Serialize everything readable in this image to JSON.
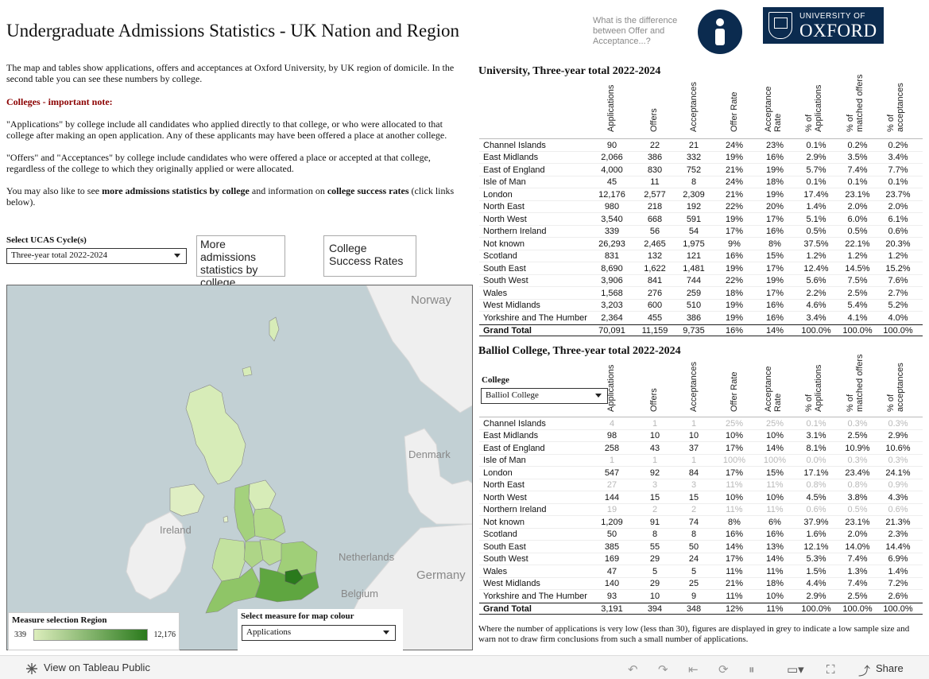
{
  "header": {
    "title": "Undergraduate Admissions Statistics - UK Nation and Region",
    "help_link": "What is the difference between Offer and Acceptance...?",
    "logo_line1": "UNIVERSITY OF",
    "logo_line2": "OXFORD"
  },
  "intro": {
    "p1": "The map and tables show applications, offers and acceptances at Oxford University, by UK region of domicile. In the second table you can see these numbers by college.",
    "note_title": "Colleges - important note:",
    "p2": "\"Applications\" by college include all candidates who applied directly to that college, or who were allocated to that college after making an open application. Any of these applicants may have been offered a place at another college.",
    "p3": "\"Offers\" and \"Acceptances\" by college include candidates who were offered a place or accepted at that college, regardless of the college to which they originally applied or were allocated.",
    "p4_pre": "You may also like to see ",
    "p4_bold1": "more admissions statistics by college",
    "p4_mid": " and information on ",
    "p4_bold2": "college success rates",
    "p4_post": " (click links below)."
  },
  "controls": {
    "cycle_label": "Select UCAS Cycle(s)",
    "cycle_value": "Three-year total 2022-2024",
    "more_button": "More admissions statistics by college",
    "rates_button": "College Success Rates"
  },
  "map": {
    "labels": {
      "norway": "Norway",
      "denmark": "Denmark",
      "ireland": "Ireland",
      "netherlands": "Netherlands",
      "germany": "Germany",
      "belgium": "Belgium"
    },
    "legend_title": "Measure selection  Region",
    "legend_min": "339",
    "legend_max": "12,176",
    "measure_label": "Select measure for map colour",
    "measure_value": "Applications"
  },
  "columns": [
    "Applications",
    "Offers",
    "Acceptances",
    "Offer Rate",
    "Acceptance Rate",
    "% of Applications",
    "% of matched offers",
    "% of acceptances"
  ],
  "university_table": {
    "title": "University,  Three-year  total  2022-2024",
    "rows": [
      [
        "Channel Islands",
        "90",
        "22",
        "21",
        "24%",
        "23%",
        "0.1%",
        "0.2%",
        "0.2%"
      ],
      [
        "East Midlands",
        "2,066",
        "386",
        "332",
        "19%",
        "16%",
        "2.9%",
        "3.5%",
        "3.4%"
      ],
      [
        "East of England",
        "4,000",
        "830",
        "752",
        "21%",
        "19%",
        "5.7%",
        "7.4%",
        "7.7%"
      ],
      [
        "Isle of Man",
        "45",
        "11",
        "8",
        "24%",
        "18%",
        "0.1%",
        "0.1%",
        "0.1%"
      ],
      [
        "London",
        "12,176",
        "2,577",
        "2,309",
        "21%",
        "19%",
        "17.4%",
        "23.1%",
        "23.7%"
      ],
      [
        "North East",
        "980",
        "218",
        "192",
        "22%",
        "20%",
        "1.4%",
        "2.0%",
        "2.0%"
      ],
      [
        "North West",
        "3,540",
        "668",
        "591",
        "19%",
        "17%",
        "5.1%",
        "6.0%",
        "6.1%"
      ],
      [
        "Northern Ireland",
        "339",
        "56",
        "54",
        "17%",
        "16%",
        "0.5%",
        "0.5%",
        "0.6%"
      ],
      [
        "Not known",
        "26,293",
        "2,465",
        "1,975",
        "9%",
        "8%",
        "37.5%",
        "22.1%",
        "20.3%"
      ],
      [
        "Scotland",
        "831",
        "132",
        "121",
        "16%",
        "15%",
        "1.2%",
        "1.2%",
        "1.2%"
      ],
      [
        "South East",
        "8,690",
        "1,622",
        "1,481",
        "19%",
        "17%",
        "12.4%",
        "14.5%",
        "15.2%"
      ],
      [
        "South West",
        "3,906",
        "841",
        "744",
        "22%",
        "19%",
        "5.6%",
        "7.5%",
        "7.6%"
      ],
      [
        "Wales",
        "1,568",
        "276",
        "259",
        "18%",
        "17%",
        "2.2%",
        "2.5%",
        "2.7%"
      ],
      [
        "West Midlands",
        "3,203",
        "600",
        "510",
        "19%",
        "16%",
        "4.6%",
        "5.4%",
        "5.2%"
      ],
      [
        "Yorkshire and The Humber",
        "2,364",
        "455",
        "386",
        "19%",
        "16%",
        "3.4%",
        "4.1%",
        "4.0%"
      ]
    ],
    "total": [
      "Grand Total",
      "70,091",
      "11,159",
      "9,735",
      "16%",
      "14%",
      "100.0%",
      "100.0%",
      "100.0%"
    ]
  },
  "college_table": {
    "title": "Balliol  College,  Three-year  total  2022-2024",
    "college_label": "College",
    "college_value": "Balliol College",
    "rows": [
      [
        "Channel Islands",
        "4",
        "1",
        "1",
        "25%",
        "25%",
        "0.1%",
        "0.3%",
        "0.3%"
      ],
      [
        "East Midlands",
        "98",
        "10",
        "10",
        "10%",
        "10%",
        "3.1%",
        "2.5%",
        "2.9%"
      ],
      [
        "East of England",
        "258",
        "43",
        "37",
        "17%",
        "14%",
        "8.1%",
        "10.9%",
        "10.6%"
      ],
      [
        "Isle of Man",
        "1",
        "1",
        "1",
        "100%",
        "100%",
        "0.0%",
        "0.3%",
        "0.3%"
      ],
      [
        "London",
        "547",
        "92",
        "84",
        "17%",
        "15%",
        "17.1%",
        "23.4%",
        "24.1%"
      ],
      [
        "North East",
        "27",
        "3",
        "3",
        "11%",
        "11%",
        "0.8%",
        "0.8%",
        "0.9%"
      ],
      [
        "North West",
        "144",
        "15",
        "15",
        "10%",
        "10%",
        "4.5%",
        "3.8%",
        "4.3%"
      ],
      [
        "Northern Ireland",
        "19",
        "2",
        "2",
        "11%",
        "11%",
        "0.6%",
        "0.5%",
        "0.6%"
      ],
      [
        "Not known",
        "1,209",
        "91",
        "74",
        "8%",
        "6%",
        "37.9%",
        "23.1%",
        "21.3%"
      ],
      [
        "Scotland",
        "50",
        "8",
        "8",
        "16%",
        "16%",
        "1.6%",
        "2.0%",
        "2.3%"
      ],
      [
        "South East",
        "385",
        "55",
        "50",
        "14%",
        "13%",
        "12.1%",
        "14.0%",
        "14.4%"
      ],
      [
        "South West",
        "169",
        "29",
        "24",
        "17%",
        "14%",
        "5.3%",
        "7.4%",
        "6.9%"
      ],
      [
        "Wales",
        "47",
        "5",
        "5",
        "11%",
        "11%",
        "1.5%",
        "1.3%",
        "1.4%"
      ],
      [
        "West Midlands",
        "140",
        "29",
        "25",
        "21%",
        "18%",
        "4.4%",
        "7.4%",
        "7.2%"
      ],
      [
        "Yorkshire and The Humber",
        "93",
        "10",
        "9",
        "11%",
        "10%",
        "2.9%",
        "2.5%",
        "2.6%"
      ]
    ],
    "low_rows": [
      0,
      3,
      5,
      7
    ],
    "total": [
      "Grand Total",
      "3,191",
      "394",
      "348",
      "12%",
      "11%",
      "100.0%",
      "100.0%",
      "100.0%"
    ]
  },
  "footnote": "Where the number of applications is very low (less than 30), figures are displayed in grey to indicate a low sample size and warn not to draw firm conclusions from such a small number of applications.",
  "bottom_bar": {
    "view_label": "View on Tableau Public",
    "share_label": "Share"
  },
  "colors": {
    "navy": "#0b2b4f",
    "note_red": "#8b0000",
    "low_grey": "#b8b8b8",
    "map_sea": "#c2d0d4"
  }
}
